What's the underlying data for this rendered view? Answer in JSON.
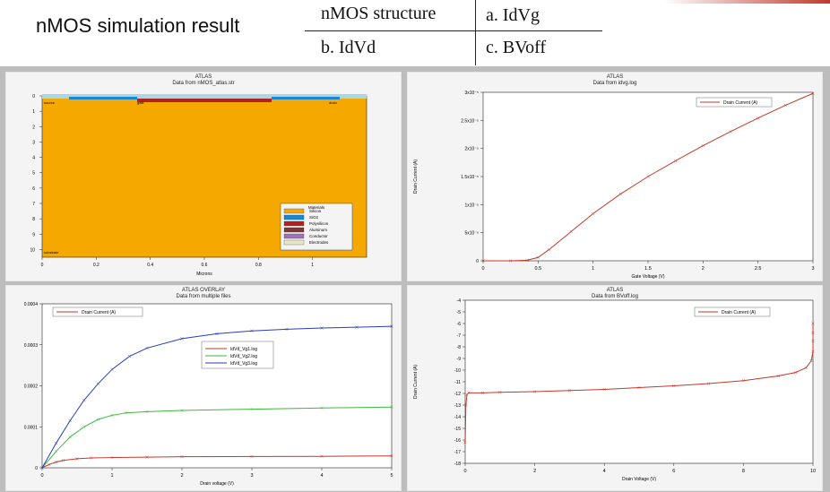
{
  "header": {
    "title": "nMOS simulation result",
    "table": [
      [
        "nMOS structure",
        "a. IdVg"
      ],
      [
        "b. IdVd",
        "c. BVoff"
      ]
    ]
  },
  "colors": {
    "silicon": "#f5a800",
    "sio2": "#1c86d0",
    "poly": "#b22222",
    "red_curve": "#c0392b",
    "green_curve": "#3cb83c",
    "blue_curve": "#2a3cb8"
  },
  "structure": {
    "title": "ATLAS",
    "subtitle": "Data from nMOS_atlas.str",
    "xlabel": "Microns",
    "xticks": [
      "0",
      "0.2",
      "0.4",
      "0.6",
      "0.8",
      "1"
    ],
    "yticks": [
      "0",
      "1",
      "2",
      "3",
      "4",
      "5",
      "6",
      "7",
      "8",
      "9",
      "10"
    ],
    "labels": {
      "source": "source",
      "gate": "gate",
      "drain": "drain",
      "substrate": "substrate"
    },
    "legend_title": "Materials",
    "legend": [
      "Silicon",
      "SiO2",
      "Polysilicon",
      "Aluminum",
      "Conductor",
      "Electrodes"
    ],
    "legend_colors": [
      "#f5a800",
      "#1c86d0",
      "#b22222",
      "#7a3a3a",
      "#a070c0",
      "#e8e8c8"
    ]
  },
  "chart_data": [
    {
      "type": "line",
      "title": "ATLAS",
      "subtitle": "Data from idvg.log",
      "xlabel": "Gate Voltage (V)",
      "ylabel": "Drain Current (A)",
      "xlim": [
        0,
        3
      ],
      "ylim": [
        0,
        3e-05
      ],
      "xticks": [
        "0",
        "0.5",
        "1",
        "1.5",
        "2",
        "2.5",
        "3"
      ],
      "yticks": [
        "0",
        "5x10⁻⁶",
        "1x10⁻⁵",
        "1.5x10⁻⁵",
        "2x10⁻⁵",
        "2.5x10⁻⁵",
        "3x10⁻⁵"
      ],
      "series": [
        {
          "name": "Drain Current (A)",
          "x": [
            0,
            0.25,
            0.4,
            0.5,
            0.6,
            0.8,
            1.0,
            1.25,
            1.5,
            1.75,
            2.0,
            2.25,
            2.5,
            2.75,
            3.0
          ],
          "values": [
            0,
            0,
            1e-07,
            6e-07,
            2e-06,
            5.2e-06,
            8.4e-06,
            1.19e-05,
            1.5e-05,
            1.78e-05,
            2.05e-05,
            2.3e-05,
            2.54e-05,
            2.77e-05,
            2.98e-05
          ]
        }
      ]
    },
    {
      "type": "line",
      "title": "ATLAS OVERLAY",
      "subtitle": "Data from multiple files",
      "xlabel": "Drain voltage (V)",
      "ylabel": "",
      "xlim": [
        0,
        5
      ],
      "ylim": [
        0,
        0.0004
      ],
      "xticks": [
        "0",
        "1",
        "2",
        "3",
        "4",
        "5"
      ],
      "yticks": [
        "0",
        "0.0001",
        "0.0002",
        "0.0003",
        "0.0004"
      ],
      "series": [
        {
          "name": "IdVd_Vg1.log",
          "color": "#c0392b",
          "x": [
            0,
            0.1,
            0.2,
            0.3,
            0.5,
            0.7,
            1,
            1.5,
            2,
            3,
            4,
            5
          ],
          "values": [
            0,
            8e-06,
            1.4e-05,
            1.8e-05,
            2.2e-05,
            2.4e-05,
            2.5e-05,
            2.6e-05,
            2.7e-05,
            2.75e-05,
            2.8e-05,
            2.9e-05
          ]
        },
        {
          "name": "IdVd_Vg2.log",
          "color": "#3cb83c",
          "x": [
            0,
            0.2,
            0.4,
            0.6,
            0.8,
            1,
            1.2,
            1.5,
            2,
            3,
            4,
            5
          ],
          "values": [
            0,
            4e-05,
            7.5e-05,
            0.0001,
            0.000118,
            0.000128,
            0.000134,
            0.000137,
            0.00014,
            0.000143,
            0.000146,
            0.000148
          ]
        },
        {
          "name": "IdVd_Vg3.log",
          "color": "#2a3cb8",
          "x": [
            0,
            0.2,
            0.4,
            0.6,
            0.8,
            1,
            1.25,
            1.5,
            2,
            2.5,
            3,
            3.5,
            4,
            4.5,
            5
          ],
          "values": [
            0,
            6e-05,
            0.000115,
            0.000165,
            0.000205,
            0.00024,
            0.000272,
            0.000292,
            0.000315,
            0.000327,
            0.000334,
            0.000338,
            0.000341,
            0.000343,
            0.000345
          ]
        }
      ],
      "legend_top": "Drain Current (A)"
    },
    {
      "type": "line",
      "title": "ATLAS",
      "subtitle": "Data from BVoff.log",
      "xlabel": "Drain Voltage (V)",
      "ylabel": "Drain Current (A)",
      "xlim": [
        0,
        10
      ],
      "ylim": [
        -18,
        -4
      ],
      "xticks": [
        "0",
        "2",
        "4",
        "6",
        "8",
        "10"
      ],
      "yticks": [
        "-4",
        "-5",
        "-6",
        "-7",
        "-8",
        "-9",
        "-10",
        "-11",
        "-12",
        "-13",
        "-14",
        "-15",
        "-16",
        "-17",
        "-18"
      ],
      "series": [
        {
          "name": "Drain Current (A)",
          "x": [
            0,
            0.02,
            0.05,
            0.1,
            0.5,
            1,
            2,
            3,
            4,
            5,
            6,
            7,
            8,
            9,
            9.5,
            9.8,
            9.95,
            10,
            10,
            10,
            10
          ],
          "values": [
            -16.2,
            -13,
            -12.1,
            -11.95,
            -11.95,
            -11.9,
            -11.85,
            -11.75,
            -11.65,
            -11.5,
            -11.35,
            -11.15,
            -10.9,
            -10.5,
            -10.2,
            -9.8,
            -9.2,
            -8.4,
            -7.5,
            -6.8,
            -6.0
          ]
        }
      ]
    }
  ]
}
